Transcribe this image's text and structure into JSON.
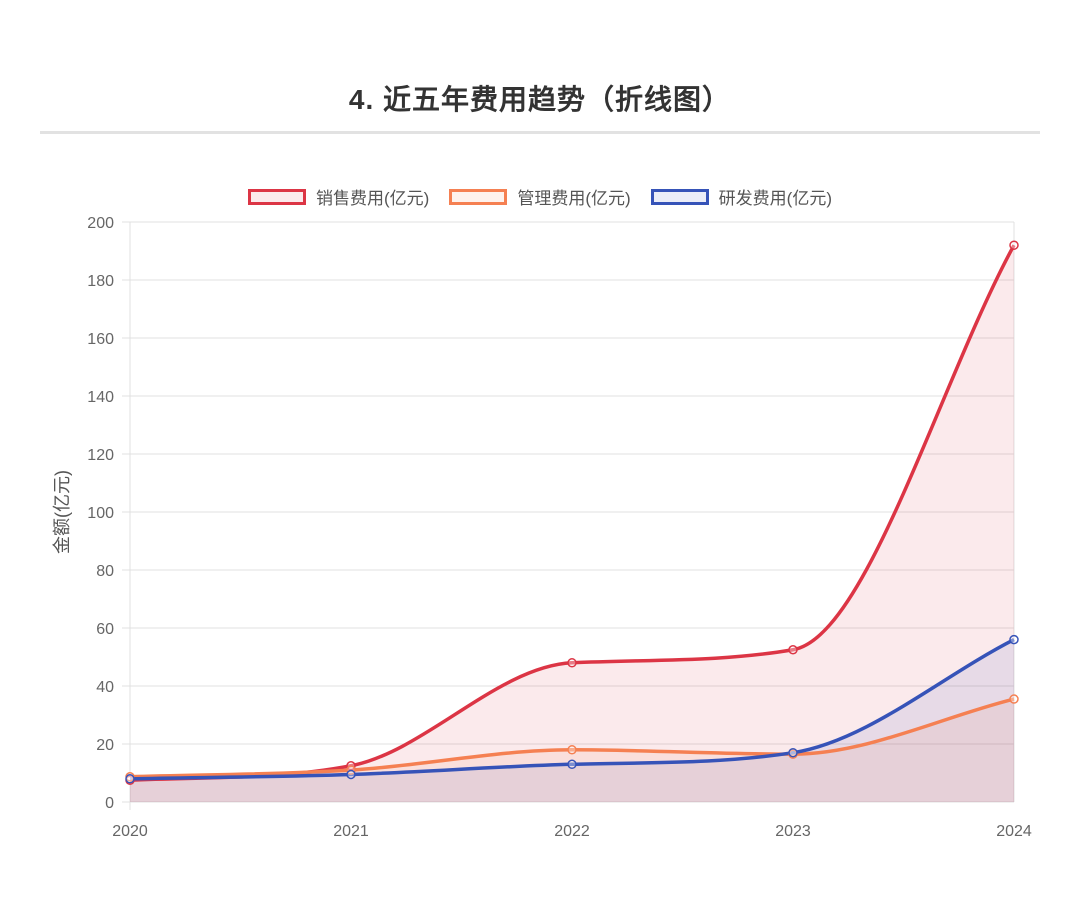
{
  "title": "4. 近五年费用趋势（折线图）",
  "chart_data": {
    "type": "line",
    "title": "4. 近五年费用趋势（折线图）",
    "xlabel": "",
    "ylabel": "金额(亿元)",
    "categories": [
      "2020",
      "2021",
      "2022",
      "2023",
      "2024"
    ],
    "ylim": [
      0,
      200
    ],
    "yticks": [
      0,
      20,
      40,
      60,
      80,
      100,
      120,
      140,
      160,
      180,
      200
    ],
    "grid": true,
    "legend_position": "top-center",
    "series": [
      {
        "name": "销售费用(亿元)",
        "values": [
          7.5,
          12.5,
          48,
          52.5,
          192
        ],
        "color": "#dc3545",
        "fill": "rgba(220,53,69,0.10)"
      },
      {
        "name": "管理费用(亿元)",
        "values": [
          8.7,
          11,
          18,
          16.5,
          35.5
        ],
        "color": "#f58052",
        "fill": "rgba(245,128,82,0.10)"
      },
      {
        "name": "研发费用(亿元)",
        "values": [
          8,
          9.5,
          13,
          17,
          56
        ],
        "color": "#3653b8",
        "fill": "rgba(54,83,184,0.10)"
      }
    ]
  }
}
